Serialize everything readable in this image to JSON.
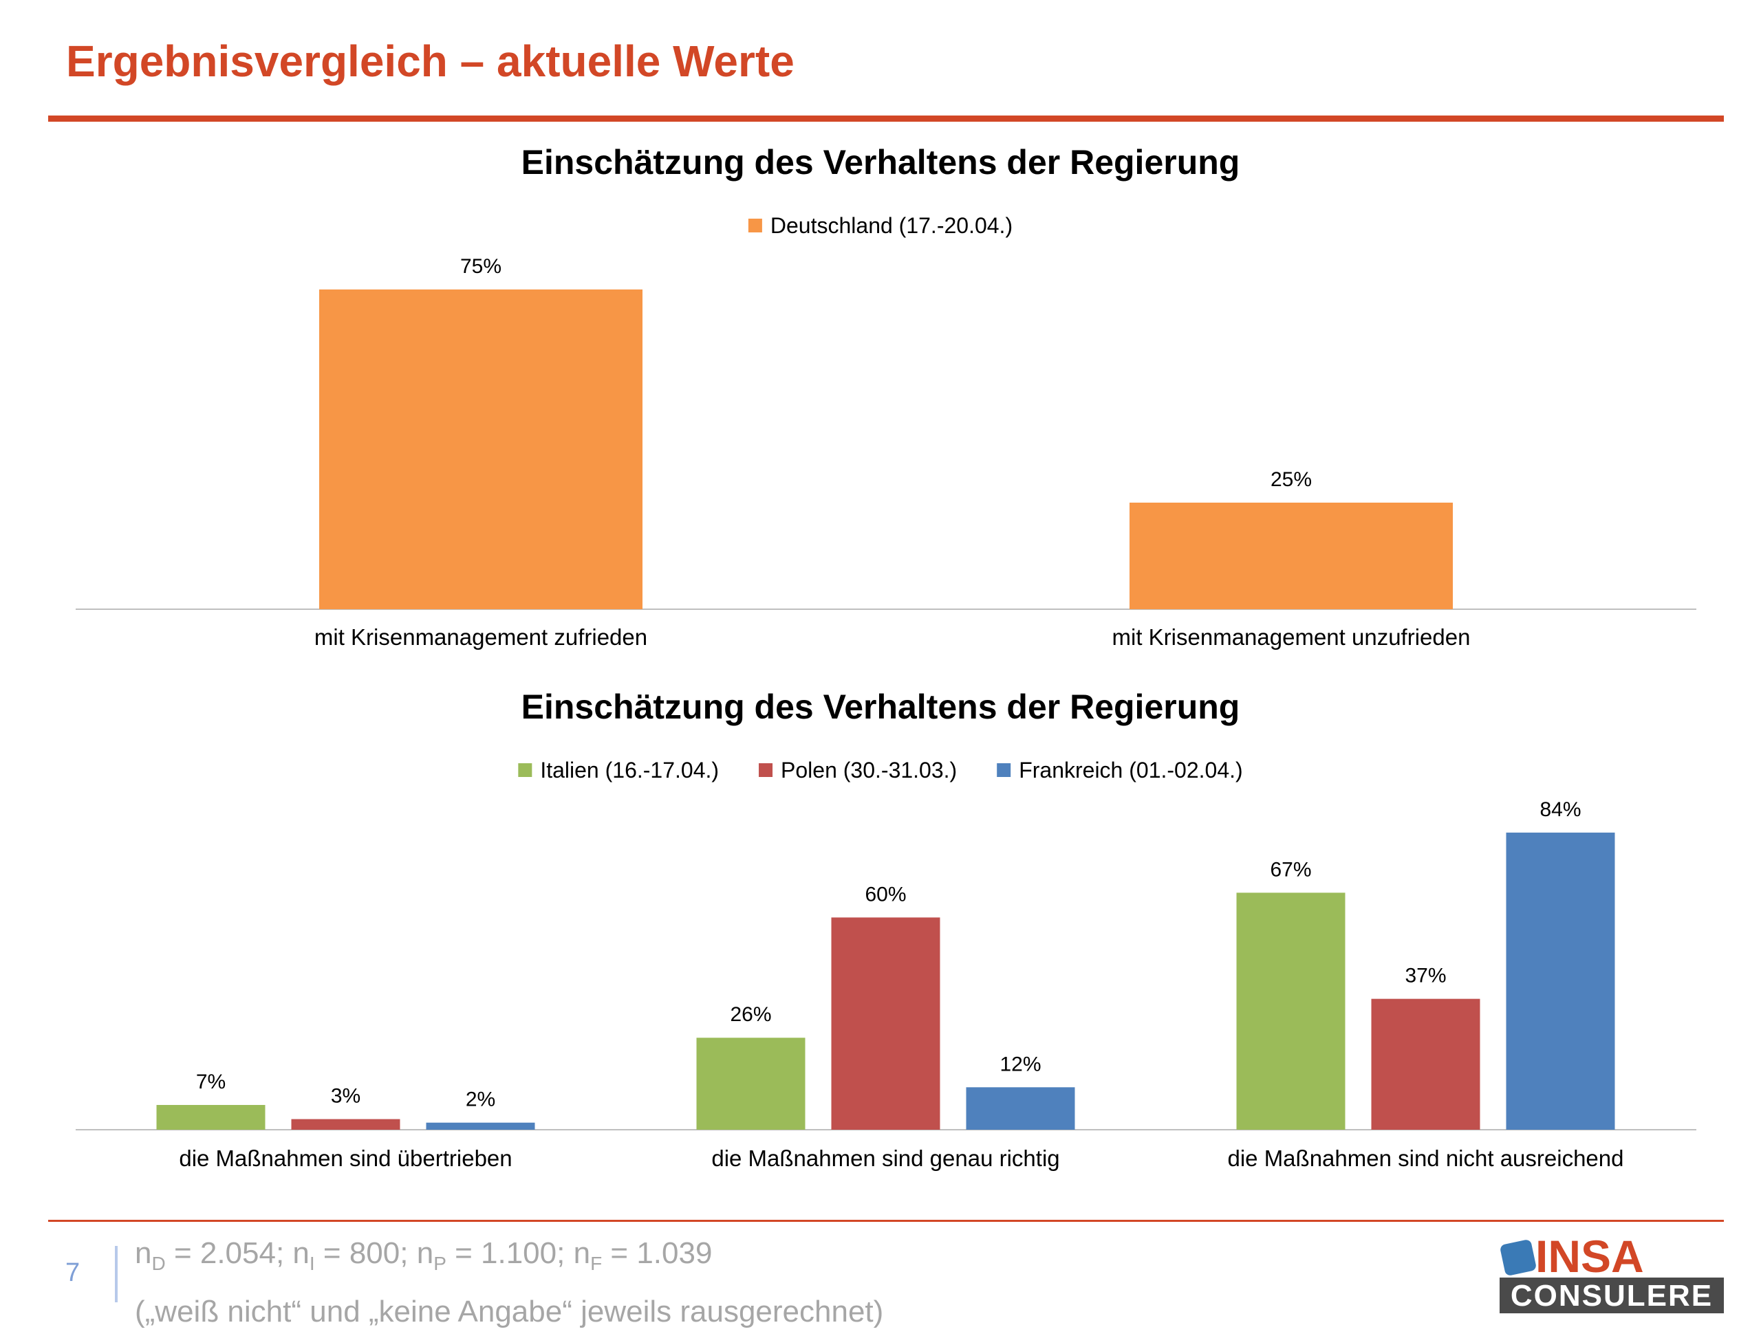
{
  "header": {
    "title": "Ergebnisvergleich – aktuelle Werte"
  },
  "chart_data": [
    {
      "type": "bar",
      "title": "Einschätzung des Verhaltens der Regierung",
      "categories": [
        "mit Krisenmanagement zufrieden",
        "mit Krisenmanagement unzufrieden"
      ],
      "series": [
        {
          "name": "Deutschland (17.-20.04.)",
          "values": [
            75,
            25
          ],
          "color": "#f79646"
        }
      ],
      "value_suffix": "%",
      "ylim": [
        0,
        80
      ],
      "legend": "top-center",
      "grid": false
    },
    {
      "type": "bar",
      "title": "Einschätzung des Verhaltens der Regierung",
      "categories": [
        "die Maßnahmen sind übertrieben",
        "die Maßnahmen sind genau richtig",
        "die Maßnahmen sind nicht ausreichend"
      ],
      "series": [
        {
          "name": "Italien (16.-17.04.)",
          "values": [
            7,
            26,
            67
          ],
          "color": "#9bbb59"
        },
        {
          "name": "Polen (30.-31.03.)",
          "values": [
            3,
            60,
            37
          ],
          "color": "#c0504d"
        },
        {
          "name": "Frankreich (01.-02.04.)",
          "values": [
            2,
            12,
            84
          ],
          "color": "#4f81bd"
        }
      ],
      "value_suffix": "%",
      "ylim": [
        0,
        90
      ],
      "legend": "top-center",
      "grid": false
    }
  ],
  "footer": {
    "page_number": "7",
    "sample": {
      "n": "n",
      "d_sub": "D",
      "d_val": " = 2.054; ",
      "i_sub": "I",
      "i_val": " = 800; ",
      "p_sub": "P",
      "p_val": " = 1.100; ",
      "f_sub": "F",
      "f_val": " = 1.039"
    },
    "note": "(„weiß nicht“ und „keine Angabe“ jeweils rausgerechnet)",
    "logo_top": "INSA",
    "logo_bottom": "CONSULERE"
  },
  "colors": {
    "accent": "#d24726",
    "logo_blue": "#3a7ab6",
    "logo_dark": "#4a4a4a"
  }
}
